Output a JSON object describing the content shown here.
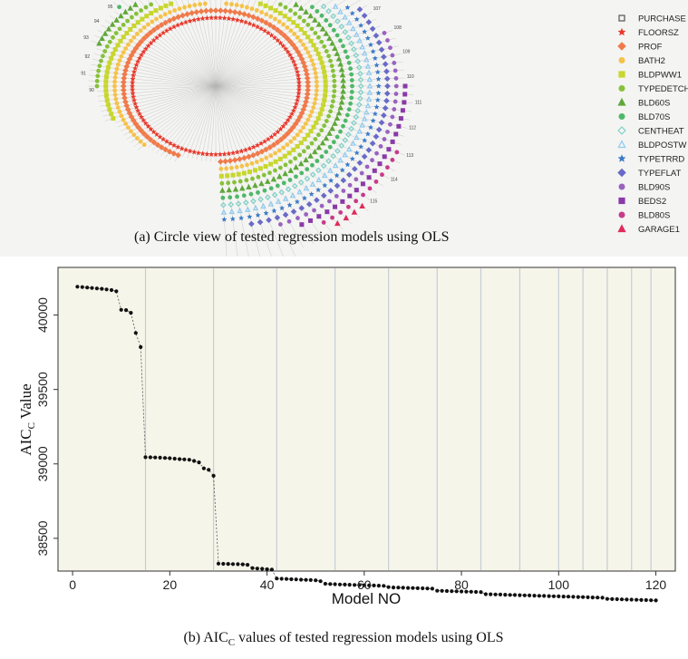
{
  "colors": {
    "PURCHASE": "#555555",
    "FLOORSZ": "#e8372a",
    "PROF": "#f07a4a",
    "BATH2": "#f5c24a",
    "BLDPWW1": "#c8d62e",
    "TYPEDETCH": "#86c13a",
    "BLD60S": "#5fa83a",
    "BLD70S": "#4fb86a",
    "CENTHEAT": "#7fd0c8",
    "BLDPOSTW": "#8ecaf0",
    "TYPETRRD": "#3a7ac8",
    "TYPEFLAT": "#6a6ac8",
    "BLD90S": "#9a62c0",
    "BEDS2": "#8a3aa8",
    "BLD80S": "#c83a8a",
    "GARAGE1": "#e02a5a"
  },
  "panel_a": {
    "caption": "(a)  Circle view of tested regression models using OLS",
    "legend": [
      {
        "label": "PURCHASE",
        "marker": "square-open",
        "color_key": "PURCHASE"
      },
      {
        "label": "FLOORSZ",
        "marker": "star",
        "color_key": "FLOORSZ"
      },
      {
        "label": "PROF",
        "marker": "diamond",
        "color_key": "PROF"
      },
      {
        "label": "BATH2",
        "marker": "circle",
        "color_key": "BATH2"
      },
      {
        "label": "BLDPWW1",
        "marker": "square",
        "color_key": "BLDPWW1"
      },
      {
        "label": "TYPEDETCH",
        "marker": "circle",
        "color_key": "TYPEDETCH"
      },
      {
        "label": "BLD60S",
        "marker": "triangle",
        "color_key": "BLD60S"
      },
      {
        "label": "BLD70S",
        "marker": "circle",
        "color_key": "BLD70S"
      },
      {
        "label": "CENTHEAT",
        "marker": "diamond-open",
        "color_key": "CENTHEAT"
      },
      {
        "label": "BLDPOSTW",
        "marker": "triangle-open",
        "color_key": "BLDPOSTW"
      },
      {
        "label": "TYPETRRD",
        "marker": "star",
        "color_key": "TYPETRRD"
      },
      {
        "label": "TYPEFLAT",
        "marker": "diamond",
        "color_key": "TYPEFLAT"
      },
      {
        "label": "BLD90S",
        "marker": "circle",
        "color_key": "BLD90S"
      },
      {
        "label": "BEDS2",
        "marker": "square",
        "color_key": "BEDS2"
      },
      {
        "label": "BLD80S",
        "marker": "circle",
        "color_key": "BLD80S"
      },
      {
        "label": "GARAGE1",
        "marker": "triangle",
        "color_key": "GARAGE1"
      }
    ],
    "visible_end_labels": [
      "120",
      "119",
      "118",
      "117",
      "116",
      "115",
      "114",
      "113",
      "112",
      "111",
      "110",
      "109",
      "108",
      "107",
      "106",
      "105",
      "104",
      "103",
      "102",
      "101",
      "100",
      "99",
      "98",
      "97",
      "96",
      "95",
      "94",
      "93",
      "92",
      "91",
      "90"
    ]
  },
  "chart_data": {
    "type": "scatter",
    "title": "",
    "caption_prefix": "(b)  AIC",
    "caption_sub": "C",
    "caption_suffix": " values of tested regression models using OLS",
    "xlabel": "Model NO",
    "ylabel_prefix": "AIC",
    "ylabel_sub": "C",
    "ylabel_suffix": " Value",
    "xlim": [
      -3,
      124
    ],
    "ylim": [
      38280,
      40320
    ],
    "xticks": [
      0,
      20,
      40,
      60,
      80,
      100,
      120
    ],
    "yticks": [
      38500,
      39000,
      39500,
      40000
    ],
    "group_boundaries": [
      15,
      29,
      42,
      54,
      65,
      75,
      84,
      92,
      100,
      105,
      110,
      115,
      119
    ],
    "grid": "vertical group separators",
    "x": [
      1,
      2,
      3,
      4,
      5,
      6,
      7,
      8,
      9,
      10,
      11,
      12,
      13,
      14,
      15,
      16,
      17,
      18,
      19,
      20,
      21,
      22,
      23,
      24,
      25,
      26,
      27,
      28,
      29,
      30,
      31,
      32,
      33,
      34,
      35,
      36,
      37,
      38,
      39,
      40,
      41,
      42,
      43,
      44,
      45,
      46,
      47,
      48,
      49,
      50,
      51,
      52,
      53,
      54,
      55,
      56,
      57,
      58,
      59,
      60,
      61,
      62,
      63,
      64,
      65,
      66,
      67,
      68,
      69,
      70,
      71,
      72,
      73,
      74,
      75,
      76,
      77,
      78,
      79,
      80,
      81,
      82,
      83,
      84,
      85,
      86,
      87,
      88,
      89,
      90,
      91,
      92,
      93,
      94,
      95,
      96,
      97,
      98,
      99,
      100,
      101,
      102,
      103,
      104,
      105,
      106,
      107,
      108,
      109,
      110,
      111,
      112,
      113,
      114,
      115,
      116,
      117,
      118,
      119,
      120
    ],
    "y": [
      40190,
      40188,
      40185,
      40182,
      40179,
      40176,
      40172,
      40168,
      40160,
      40035,
      40033,
      40015,
      39880,
      39785,
      39045,
      39044,
      39043,
      39042,
      39040,
      39038,
      39035,
      39032,
      39030,
      39028,
      39020,
      39010,
      38970,
      38960,
      38920,
      38330,
      38329,
      38328,
      38327,
      38326,
      38325,
      38322,
      38300,
      38297,
      38295,
      38292,
      38290,
      38230,
      38228,
      38227,
      38225,
      38224,
      38222,
      38221,
      38220,
      38218,
      38212,
      38195,
      38193,
      38192,
      38190,
      38189,
      38188,
      38187,
      38186,
      38185,
      38184,
      38183,
      38182,
      38181,
      38172,
      38170,
      38169,
      38168,
      38167,
      38166,
      38165,
      38164,
      38163,
      38162,
      38148,
      38147,
      38146,
      38145,
      38144,
      38143,
      38142,
      38141,
      38140,
      38139,
      38125,
      38124,
      38123,
      38122,
      38121,
      38120,
      38119,
      38118,
      38117,
      38116,
      38115,
      38114,
      38113,
      38112,
      38111,
      38110,
      38109,
      38108,
      38107,
      38106,
      38105,
      38104,
      38103,
      38102,
      38101,
      38093,
      38092,
      38091,
      38090,
      38089,
      38088,
      38087,
      38086,
      38085,
      38084,
      38083
    ]
  }
}
